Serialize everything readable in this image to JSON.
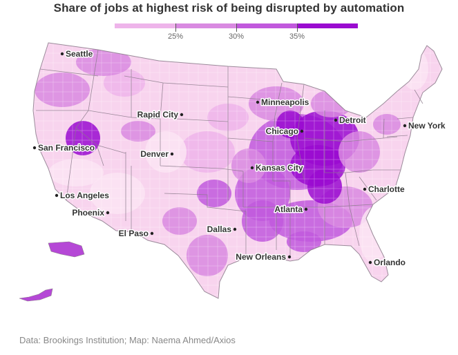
{
  "title": "Share of jobs at highest risk of being disrupted by automation",
  "legend": {
    "colors": [
      "#fce4f3",
      "#eeb4ea",
      "#d98ae1",
      "#c159dd",
      "#9a0bd0"
    ],
    "ticks": [
      "25%",
      "30%",
      "35%"
    ]
  },
  "colors": {
    "state_border": "#8a7a8a",
    "background": "#ffffff"
  },
  "cities": [
    {
      "name": "Seattle"
    },
    {
      "name": "Minneapolis"
    },
    {
      "name": "Rapid City"
    },
    {
      "name": "Detroit"
    },
    {
      "name": "New York"
    },
    {
      "name": "Chicago"
    },
    {
      "name": "San Francisco"
    },
    {
      "name": "Denver"
    },
    {
      "name": "Kansas City"
    },
    {
      "name": "Los Angeles"
    },
    {
      "name": "Charlotte"
    },
    {
      "name": "Phoenix"
    },
    {
      "name": "Atlanta"
    },
    {
      "name": "Dallas"
    },
    {
      "name": "El Paso"
    },
    {
      "name": "New Orleans"
    },
    {
      "name": "Orlando"
    }
  ],
  "source": "Data: Brookings Institution; Map: Naema Ahmed/Axios"
}
